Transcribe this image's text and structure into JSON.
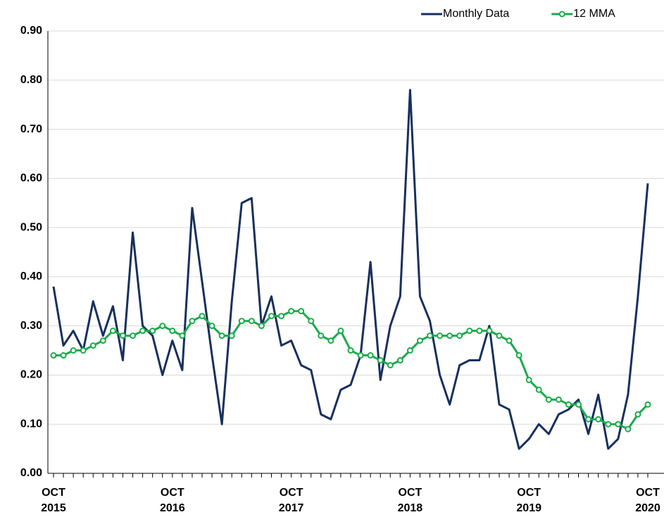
{
  "chart_data": {
    "type": "line",
    "categories": [
      "OCT 2015",
      null,
      null,
      null,
      null,
      null,
      null,
      null,
      null,
      null,
      null,
      null,
      "OCT 2016",
      null,
      null,
      null,
      null,
      null,
      null,
      null,
      null,
      null,
      null,
      null,
      "OCT 2017",
      null,
      null,
      null,
      null,
      null,
      null,
      null,
      null,
      null,
      null,
      null,
      "OCT 2018",
      null,
      null,
      null,
      null,
      null,
      null,
      null,
      null,
      null,
      null,
      null,
      "OCT 2019",
      null,
      null,
      null,
      null,
      null,
      null,
      null,
      null,
      null,
      null,
      null,
      "OCT 2020"
    ],
    "series": [
      {
        "name": "Monthly Data",
        "color": "#17305e",
        "marker": false,
        "values": [
          0.38,
          0.26,
          0.29,
          0.25,
          0.35,
          0.28,
          0.34,
          0.23,
          0.49,
          0.3,
          0.28,
          0.2,
          0.27,
          0.21,
          0.54,
          0.39,
          0.24,
          0.1,
          0.35,
          0.55,
          0.56,
          0.3,
          0.36,
          0.26,
          0.27,
          0.22,
          0.21,
          0.12,
          0.11,
          0.17,
          0.18,
          0.24,
          0.43,
          0.19,
          0.3,
          0.36,
          0.78,
          0.36,
          0.31,
          0.2,
          0.14,
          0.22,
          0.23,
          0.23,
          0.3,
          0.14,
          0.13,
          0.05,
          0.07,
          0.1,
          0.08,
          0.12,
          0.13,
          0.15,
          0.08,
          0.16,
          0.05,
          0.07,
          0.16,
          0.36,
          0.59
        ]
      },
      {
        "name": "12 MMA",
        "color": "#1aab4b",
        "marker": true,
        "values": [
          0.24,
          0.24,
          0.25,
          0.25,
          0.26,
          0.27,
          0.29,
          0.28,
          0.28,
          0.29,
          0.29,
          0.3,
          0.29,
          0.28,
          0.31,
          0.32,
          0.3,
          0.28,
          0.28,
          0.31,
          0.31,
          0.3,
          0.32,
          0.32,
          0.33,
          0.33,
          0.31,
          0.28,
          0.27,
          0.29,
          0.25,
          0.24,
          0.24,
          0.23,
          0.22,
          0.23,
          0.25,
          0.27,
          0.28,
          0.28,
          0.28,
          0.28,
          0.29,
          0.29,
          0.29,
          0.28,
          0.27,
          0.24,
          0.19,
          0.17,
          0.15,
          0.15,
          0.14,
          0.14,
          0.11,
          0.11,
          0.1,
          0.1,
          0.09,
          0.12,
          0.14
        ]
      }
    ],
    "ylim": [
      0,
      0.9
    ],
    "yticks": [
      {
        "value": 0,
        "label": "0.00"
      },
      {
        "value": 0.1,
        "label": "0.10"
      },
      {
        "value": 0.2,
        "label": "0.20"
      },
      {
        "value": 0.3,
        "label": "0.30"
      },
      {
        "value": 0.4,
        "label": "0.40"
      },
      {
        "value": 0.5,
        "label": "0.50"
      },
      {
        "value": 0.6,
        "label": "0.60"
      },
      {
        "value": 0.7,
        "label": "0.70"
      },
      {
        "value": 0.8,
        "label": "0.80"
      },
      {
        "value": 0.9,
        "label": "0.90"
      }
    ],
    "grid": true,
    "legend": "top-right"
  }
}
